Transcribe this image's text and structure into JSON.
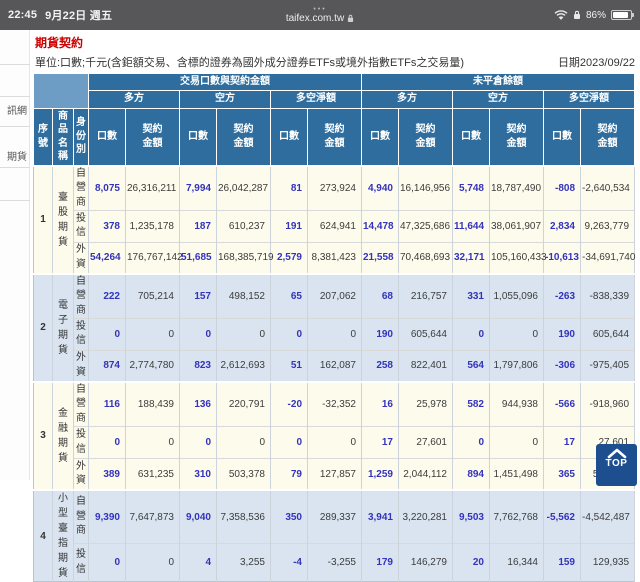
{
  "status_bar": {
    "time": "22:45",
    "date": "9月22日 週五",
    "menu_dots": "•••",
    "url": "taifex.com.tw",
    "battery_percent": "86%"
  },
  "sidebar": {
    "items": [
      {
        "label": "訊網"
      },
      {
        "label": "期貨"
      }
    ]
  },
  "page": {
    "title": "期貨契約",
    "unit_note": "單位:口數;千元(含鉅額交易、含標的證券為國外成分證券ETFs或境外指數ETFs之交易量)",
    "report_date": "日期2023/09/22"
  },
  "table": {
    "group_headers": [
      "交易口數與契約金額",
      "未平倉餘額"
    ],
    "side_headers": [
      "多方",
      "空方",
      "多空淨額"
    ],
    "col_headers": {
      "seq": "序號",
      "product": "商品名稱",
      "identity": "身份別",
      "volume": "口數",
      "amount": "契約金額"
    },
    "groups": [
      {
        "seq": "1",
        "product": "臺股期貨",
        "rows": [
          {
            "identity": "自營商",
            "cells": [
              "8,075",
              "26,316,211",
              "7,994",
              "26,042,287",
              "81",
              "273,924",
              "4,940",
              "16,146,956",
              "5,748",
              "18,787,490",
              "-808",
              "-2,640,534"
            ]
          },
          {
            "identity": "投信",
            "cells": [
              "378",
              "1,235,178",
              "187",
              "610,237",
              "191",
              "624,941",
              "14,478",
              "47,325,686",
              "11,644",
              "38,061,907",
              "2,834",
              "9,263,779"
            ]
          },
          {
            "identity": "外資",
            "cells": [
              "54,264",
              "176,767,142",
              "51,685",
              "168,385,719",
              "2,579",
              "8,381,423",
              "21,558",
              "70,468,693",
              "32,171",
              "105,160,433",
              "-10,613",
              "-34,691,740"
            ]
          }
        ]
      },
      {
        "seq": "2",
        "product": "電子期貨",
        "rows": [
          {
            "identity": "自營商",
            "cells": [
              "222",
              "705,214",
              "157",
              "498,152",
              "65",
              "207,062",
              "68",
              "216,757",
              "331",
              "1,055,096",
              "-263",
              "-838,339"
            ]
          },
          {
            "identity": "投信",
            "cells": [
              "0",
              "0",
              "0",
              "0",
              "0",
              "0",
              "190",
              "605,644",
              "0",
              "0",
              "190",
              "605,644"
            ]
          },
          {
            "identity": "外資",
            "cells": [
              "874",
              "2,774,780",
              "823",
              "2,612,693",
              "51",
              "162,087",
              "258",
              "822,401",
              "564",
              "1,797,806",
              "-306",
              "-975,405"
            ]
          }
        ]
      },
      {
        "seq": "3",
        "product": "金融期貨",
        "rows": [
          {
            "identity": "自營商",
            "cells": [
              "116",
              "188,439",
              "136",
              "220,791",
              "-20",
              "-32,352",
              "16",
              "25,978",
              "582",
              "944,938",
              "-566",
              "-918,960"
            ]
          },
          {
            "identity": "投信",
            "cells": [
              "0",
              "0",
              "0",
              "0",
              "0",
              "0",
              "17",
              "27,601",
              "0",
              "0",
              "17",
              "27,601"
            ]
          },
          {
            "identity": "外資",
            "cells": [
              "389",
              "631,235",
              "310",
              "503,378",
              "79",
              "127,857",
              "1,259",
              "2,044,112",
              "894",
              "1,451,498",
              "365",
              "592,614"
            ]
          }
        ]
      },
      {
        "seq": "4",
        "product": "小型臺指期貨",
        "rows": [
          {
            "identity": "自營商",
            "cells": [
              "9,390",
              "7,647,873",
              "9,040",
              "7,358,536",
              "350",
              "289,337",
              "3,941",
              "3,220,281",
              "9,503",
              "7,762,768",
              "-5,562",
              "-4,542,487"
            ]
          },
          {
            "identity": "投信",
            "cells": [
              "0",
              "0",
              "4",
              "3,255",
              "-4",
              "-3,255",
              "179",
              "146,279",
              "20",
              "16,344",
              "159",
              "129,935"
            ]
          }
        ]
      }
    ]
  },
  "top_button": {
    "label": "TOP"
  },
  "colors": {
    "header_blue": "#2e6d9d",
    "corner_blue": "#6d9cc4",
    "row_cream": "#fdfbec",
    "row_blue": "#d9e4f0",
    "volume_text": "#3333bb",
    "title_red": "#cc0000",
    "status_bar": "#57575a",
    "top_button": "#1d4e90"
  }
}
